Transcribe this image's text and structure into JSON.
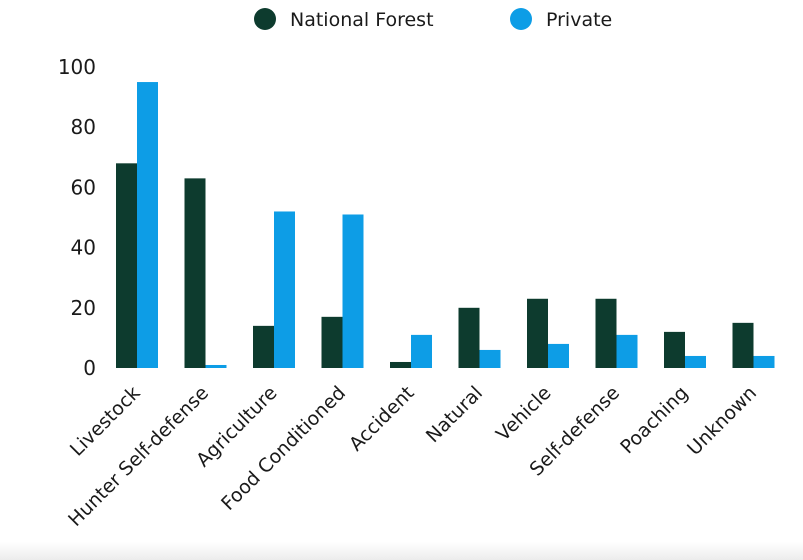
{
  "colors": {
    "national_forest": "#0d3b2e",
    "private": "#0d9de6"
  },
  "chart_data": {
    "type": "bar",
    "title": "",
    "xlabel": "",
    "ylabel": "",
    "ylim": [
      0,
      100
    ],
    "yticks": [
      "0",
      "20",
      "40",
      "60",
      "80",
      "100"
    ],
    "grid": false,
    "legend_position": "top-center",
    "categories": [
      "Livestock",
      "Hunter Self-defense",
      "Agriculture",
      "Food Conditioned",
      "Accident",
      "Natural",
      "Vehicle",
      "Self-defense",
      "Poaching",
      "Unknown"
    ],
    "series": [
      {
        "name": "National Forest",
        "values": [
          68,
          63,
          14,
          17,
          2,
          20,
          23,
          23,
          12,
          15
        ]
      },
      {
        "name": "Private",
        "values": [
          95,
          1,
          52,
          51,
          11,
          6,
          8,
          11,
          4,
          4
        ]
      }
    ]
  }
}
